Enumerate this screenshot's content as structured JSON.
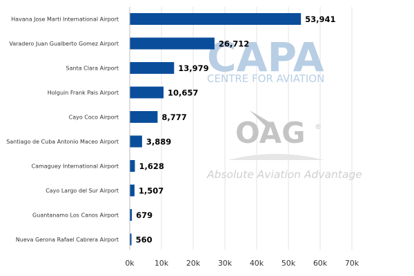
{
  "chart_data": {
    "type": "bar",
    "orientation": "horizontal",
    "title": "",
    "xlabel": "",
    "ylabel": "",
    "xlim": [
      0,
      70000
    ],
    "ticks": [
      0,
      10000,
      20000,
      30000,
      40000,
      50000,
      60000,
      70000
    ],
    "tick_labels": [
      "0k",
      "10k",
      "20k",
      "30k",
      "40k",
      "50k",
      "60k",
      "70k"
    ],
    "grid": "vertical",
    "legend": "none",
    "color": "#0a4e9b",
    "categories": [
      "Havana Jose Marti International Airport",
      "Varadero Juan Gualberto Gomez Airport",
      "Santa Clara Airport",
      "Holguin Frank Pais Airport",
      "Cayo Coco Airport",
      "Santiago de Cuba Antonio Maceo Airport",
      "Camaguey International Airport",
      "Cayo Largo del Sur Airport",
      "Guantanamo Los Canos Airport",
      "Nueva Gerona Rafael Cabrera Airport"
    ],
    "values": [
      53941,
      26712,
      13979,
      10657,
      8777,
      3889,
      1628,
      1507,
      679,
      560
    ],
    "value_labels": [
      "53,941",
      "26,712",
      "13,979",
      "10,657",
      "8,777",
      "3,889",
      "1,628",
      "1,507",
      "679",
      "560"
    ]
  },
  "watermarks": {
    "capa_logo": "CAPA",
    "capa_tagline": "CENTRE FOR AVIATION",
    "oag_logo": "OAG",
    "oag_registered": "®",
    "oag_tagline": "Absolute Aviation Advantage"
  }
}
